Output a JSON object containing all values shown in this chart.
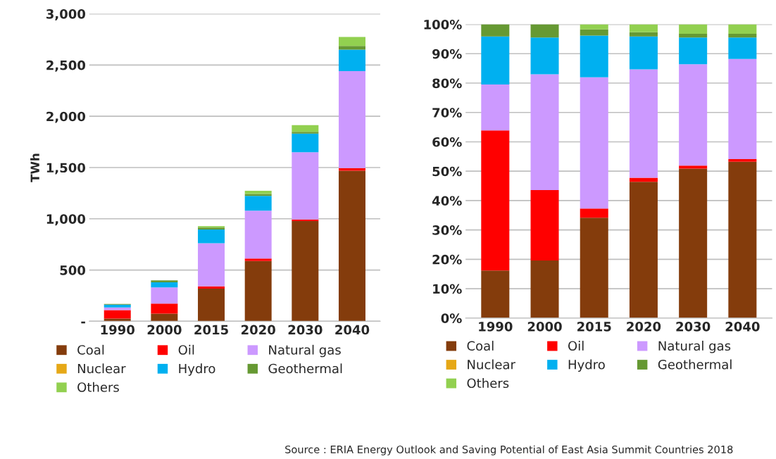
{
  "chart_data": [
    {
      "type": "bar",
      "stacked": true,
      "ylabel": "TWh",
      "categories": [
        "1990",
        "2000",
        "2015",
        "2020",
        "2030",
        "2040"
      ],
      "ylim": [
        0,
        3000
      ],
      "yticks": [
        {
          "value": 0,
          "label": "-"
        },
        500,
        {
          "value": 1000,
          "label": "1,000"
        },
        {
          "value": 1500,
          "label": "1,500"
        },
        {
          "value": 2000,
          "label": "2,000"
        },
        {
          "value": 2500,
          "label": "2,500"
        },
        {
          "value": 3000,
          "label": "3,000"
        }
      ],
      "grid": "y",
      "legend": "bottom",
      "series": [
        {
          "name": "Coal",
          "color": "#843c0c",
          "values": [
            27,
            75,
            318,
            589,
            978,
            1469
          ]
        },
        {
          "name": "Oil",
          "color": "#ff0000",
          "values": [
            82,
            97,
            23,
            23,
            16,
            25
          ]
        },
        {
          "name": "Natural gas",
          "color": "#cc99ff",
          "values": [
            26,
            158,
            420,
            467,
            656,
            946
          ]
        },
        {
          "name": "Nuclear",
          "color": "#e6a817",
          "values": [
            0,
            0,
            0,
            0,
            0,
            0
          ]
        },
        {
          "name": "Hydro",
          "color": "#00b0f0",
          "values": [
            28,
            51,
            135,
            145,
            181,
            211
          ]
        },
        {
          "name": "Geothermal",
          "color": "#669933",
          "values": [
            7,
            19,
            18,
            18,
            18,
            35
          ]
        },
        {
          "name": "Others",
          "color": "#92d050",
          "values": [
            0,
            0,
            14,
            32,
            64,
            87
          ]
        }
      ]
    },
    {
      "type": "bar",
      "stacked": true,
      "categories": [
        "1990",
        "2000",
        "2015",
        "2020",
        "2030",
        "2040"
      ],
      "ylim": [
        0,
        100
      ],
      "yticks": [
        {
          "value": 0,
          "label": "0%"
        },
        {
          "value": 10,
          "label": "10%"
        },
        {
          "value": 20,
          "label": "20%"
        },
        {
          "value": 30,
          "label": "30%"
        },
        {
          "value": 40,
          "label": "40%"
        },
        {
          "value": 50,
          "label": "50%"
        },
        {
          "value": 60,
          "label": "60%"
        },
        {
          "value": 70,
          "label": "70%"
        },
        {
          "value": 80,
          "label": "80%"
        },
        {
          "value": 90,
          "label": "90%"
        },
        {
          "value": 100,
          "label": "100%"
        }
      ],
      "grid": "y",
      "legend": "bottom",
      "annotations": [
        "Source : ERIA Energy Outlook and Saving Potential of East Asia Summit Countries 2018"
      ],
      "series": [
        {
          "name": "Coal",
          "color": "#843c0c",
          "values": [
            16.2,
            19.6,
            34.2,
            46.4,
            50.9,
            53.2
          ]
        },
        {
          "name": "Oil",
          "color": "#ff0000",
          "values": [
            47.7,
            24.0,
            3.1,
            1.4,
            1.0,
            0.9
          ]
        },
        {
          "name": "Natural gas",
          "color": "#cc99ff",
          "values": [
            15.6,
            39.4,
            44.7,
            36.9,
            34.5,
            34.1
          ]
        },
        {
          "name": "Nuclear",
          "color": "#e6a817",
          "values": [
            0,
            0,
            0,
            0,
            0,
            0
          ]
        },
        {
          "name": "Hydro",
          "color": "#00b0f0",
          "values": [
            16.4,
            12.5,
            14.2,
            11.2,
            9.1,
            7.3
          ]
        },
        {
          "name": "Geothermal",
          "color": "#669933",
          "values": [
            4.1,
            4.5,
            2.1,
            1.4,
            1.3,
            1.3
          ]
        },
        {
          "name": "Others",
          "color": "#92d050",
          "values": [
            0,
            0,
            1.7,
            2.7,
            3.2,
            3.2
          ]
        }
      ]
    }
  ]
}
